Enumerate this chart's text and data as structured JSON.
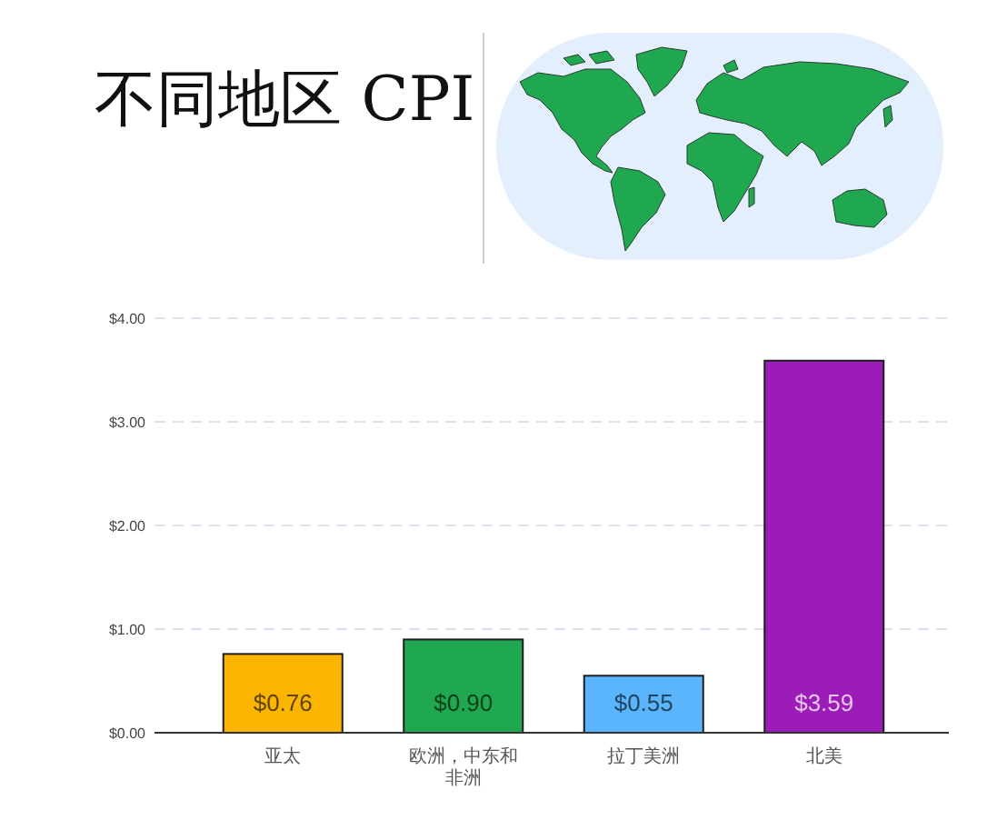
{
  "chart_data": {
    "type": "bar",
    "title": "不同地区 CPI",
    "categories": [
      "亚太",
      "欧洲，中东和非洲",
      "拉丁美洲",
      "北美"
    ],
    "values": [
      0.76,
      0.9,
      0.55,
      3.59
    ],
    "colors": [
      "#fbb400",
      "#1fa84f",
      "#5ab5fc",
      "#9c1cb8"
    ],
    "value_labels": [
      "$0.76",
      "$0.90",
      "$0.55",
      "$3.59"
    ],
    "ylim": [
      0,
      4
    ],
    "yticks": [
      {
        "value": 0,
        "label": "$0.00"
      },
      {
        "value": 1,
        "label": "$1.00"
      },
      {
        "value": 2,
        "label": "$2.00"
      },
      {
        "value": 3,
        "label": "$3.00"
      },
      {
        "value": 4,
        "label": "$4.00"
      }
    ],
    "grid": "y"
  }
}
